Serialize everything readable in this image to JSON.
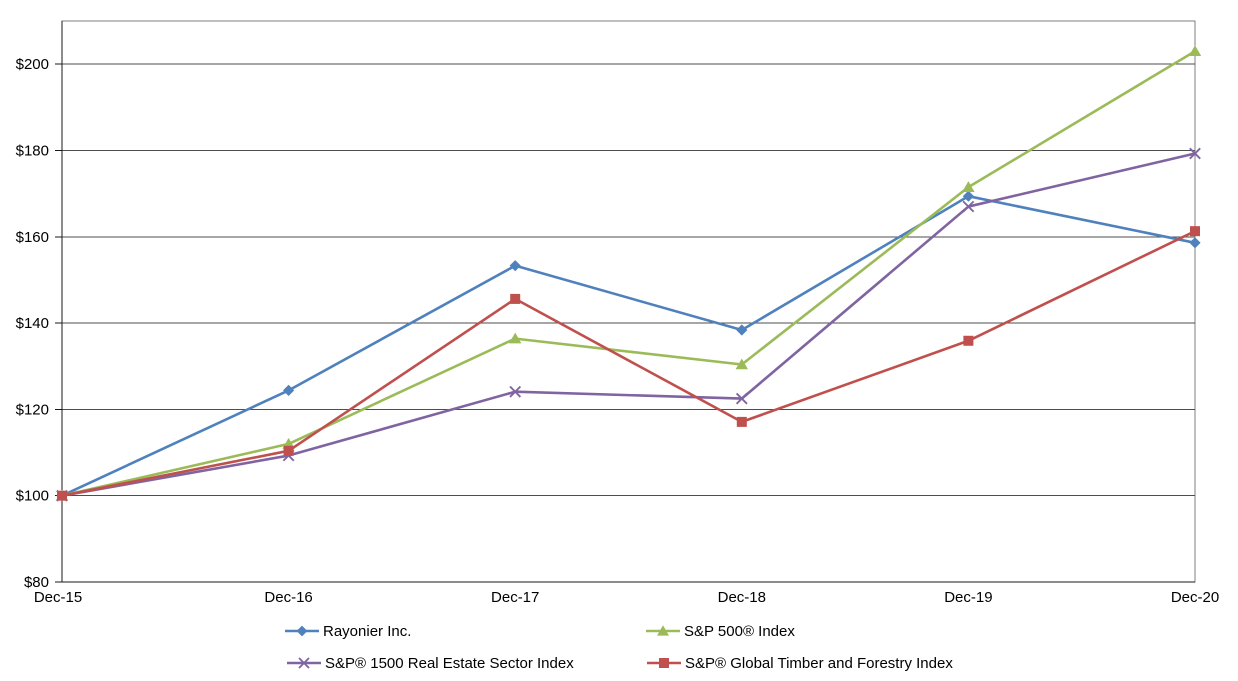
{
  "chart_data": {
    "type": "line",
    "title": "",
    "xlabel": "",
    "ylabel": "",
    "categories": [
      "Dec-15",
      "Dec-16",
      "Dec-17",
      "Dec-18",
      "Dec-19",
      "Dec-20"
    ],
    "series": [
      {
        "name": "Rayonier Inc.",
        "color": "#4F81BD",
        "marker": "diamond",
        "values": [
          100.0,
          124.4,
          153.3,
          138.4,
          169.4,
          158.6
        ]
      },
      {
        "name": "S&P 500® Index",
        "color": "#9BBB59",
        "marker": "triangle",
        "values": [
          100.0,
          112.0,
          136.4,
          130.4,
          171.5,
          203.0
        ]
      },
      {
        "name": "S&P® 1500 Real Estate Sector Index",
        "color": "#8064A2",
        "marker": "x",
        "values": [
          100.0,
          109.3,
          124.1,
          122.5,
          167.0,
          179.3
        ]
      },
      {
        "name": "S&P® Global Timber and Forestry Index",
        "color": "#C0504D",
        "marker": "square",
        "values": [
          100.0,
          110.4,
          145.6,
          117.1,
          135.9,
          161.3
        ]
      }
    ],
    "ylim": [
      80,
      210
    ],
    "y_major_unit": 20,
    "y_tick_values": [
      80,
      100,
      120,
      140,
      160,
      180,
      200
    ],
    "y_tick_labels": [
      "$80",
      "$100",
      "$120",
      "$140",
      "$160",
      "$180",
      "$200"
    ],
    "grid": "horizontal-major",
    "legend_position": "bottom-two-rows",
    "colors": {
      "gridline": "#4d4d4d",
      "plot_border": "#7f7f7f",
      "axis": "#1a1a1a",
      "text": "#000000",
      "background": "#ffffff"
    }
  }
}
